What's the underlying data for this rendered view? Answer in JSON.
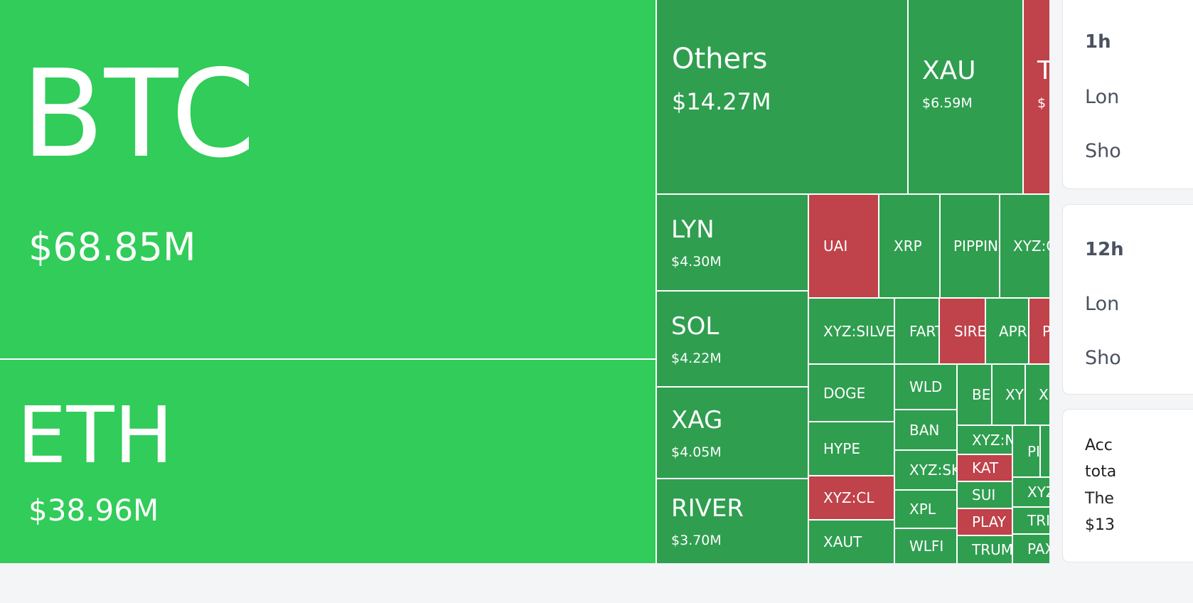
{
  "colors": {
    "large_gain": "#31cc59",
    "gain": "#2f9e4f",
    "loss": "#c0424a"
  },
  "treemap": {
    "btc": {
      "label": "BTC",
      "value": "$68.85M"
    },
    "eth": {
      "label": "ETH",
      "value": "$38.96M"
    },
    "others": {
      "label": "Others",
      "value": "$14.27M"
    },
    "xau": {
      "label": "XAU",
      "value": "$6.59M"
    },
    "t": {
      "label": "T",
      "value": "$"
    },
    "lyn": {
      "label": "LYN",
      "value": "$4.30M"
    },
    "sol": {
      "label": "SOL",
      "value": "$4.22M"
    },
    "xag": {
      "label": "XAG",
      "value": "$4.05M"
    },
    "river": {
      "label": "RIVER",
      "value": "$3.70M"
    },
    "small": [
      "UAI",
      "XRP",
      "PIPPIN",
      "XYZ:G",
      "XYZ:SILVER",
      "FART",
      "SIREN",
      "APR",
      "P",
      "DOGE",
      "HYPE",
      "XYZ:CL",
      "XAUT",
      "WLD",
      "BAN",
      "XYZ:SK",
      "XPL",
      "WLFI",
      "BE",
      "XY",
      "X",
      "XYZ:N",
      "KAT",
      "SUI",
      "PLAY",
      "TRUM",
      "PI",
      "",
      "XYZ",
      "TRI",
      "PAX"
    ]
  },
  "panel": {
    "card1": {
      "title": "1h",
      "long": "Lon",
      "short": "Sho"
    },
    "card2": {
      "title": "12h",
      "long": "Lon",
      "short": "Sho"
    },
    "card3": {
      "lines": [
        "Acc",
        "tota",
        "The",
        "$13"
      ]
    }
  }
}
